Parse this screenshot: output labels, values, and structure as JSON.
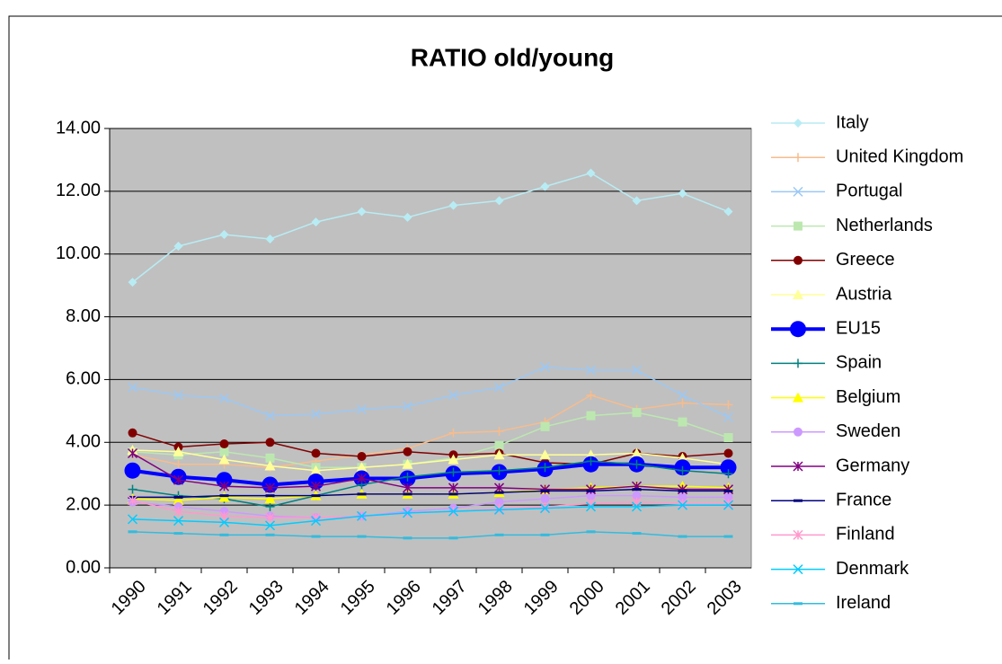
{
  "chart_data": {
    "type": "line",
    "title": "RATIO old/young",
    "categories": [
      "1990",
      "1991",
      "1992",
      "1993",
      "1994",
      "1995",
      "1996",
      "1997",
      "1998",
      "1999",
      "2000",
      "2001",
      "2002",
      "2003"
    ],
    "ylim": [
      0,
      14
    ],
    "yticks": [
      {
        "value": 0,
        "label": "0.00"
      },
      {
        "value": 2,
        "label": "2.00"
      },
      {
        "value": 4,
        "label": "4.00"
      },
      {
        "value": 6,
        "label": "6.00"
      },
      {
        "value": 8,
        "label": "8.00"
      },
      {
        "value": 10,
        "label": "10.00"
      },
      {
        "value": 12,
        "label": "12.00"
      },
      {
        "value": 14,
        "label": "14.00"
      }
    ],
    "grid": true,
    "legend": "right",
    "series": [
      {
        "name": "Italy",
        "color": "#b8ecf4",
        "marker": "diamond",
        "values": [
          9.1,
          10.25,
          10.62,
          10.48,
          11.02,
          11.35,
          11.17,
          11.55,
          11.7,
          12.15,
          12.58,
          11.7,
          11.93,
          11.35
        ]
      },
      {
        "name": "United Kingdom",
        "color": "#f8bc8c",
        "marker": "plus",
        "values": [
          3.6,
          3.3,
          3.3,
          3.2,
          3.4,
          3.6,
          3.8,
          4.3,
          4.35,
          4.65,
          5.5,
          5.05,
          5.25,
          5.2
        ]
      },
      {
        "name": "Portugal",
        "color": "#9cc8f4",
        "marker": "x",
        "values": [
          5.75,
          5.5,
          5.4,
          4.85,
          4.9,
          5.05,
          5.15,
          5.5,
          5.75,
          6.4,
          6.3,
          6.3,
          5.5,
          4.8
        ]
      },
      {
        "name": "Netherlands",
        "color": "#bce8b0",
        "marker": "square",
        "values": [
          3.7,
          3.6,
          3.7,
          3.5,
          3.2,
          3.2,
          3.3,
          3.5,
          3.9,
          4.5,
          4.85,
          4.95,
          4.65,
          4.15
        ]
      },
      {
        "name": "Greece",
        "color": "#800000",
        "marker": "circle",
        "values": [
          4.3,
          3.85,
          3.95,
          4.0,
          3.65,
          3.55,
          3.7,
          3.6,
          3.65,
          3.35,
          3.3,
          3.65,
          3.55,
          3.65
        ]
      },
      {
        "name": "Austria",
        "color": "#ffff99",
        "marker": "triangle",
        "values": [
          3.75,
          3.7,
          3.45,
          3.25,
          3.1,
          3.2,
          3.3,
          3.45,
          3.6,
          3.6,
          3.6,
          3.65,
          3.5,
          3.3
        ]
      },
      {
        "name": "EU15",
        "color": "#0000ff",
        "marker": "bigcircle",
        "values": [
          3.1,
          2.9,
          2.8,
          2.65,
          2.75,
          2.85,
          2.85,
          3.0,
          3.05,
          3.15,
          3.3,
          3.3,
          3.2,
          3.2
        ]
      },
      {
        "name": "Spain",
        "color": "#008080",
        "marker": "plus",
        "values": [
          2.5,
          2.3,
          2.2,
          1.95,
          2.3,
          2.65,
          2.9,
          3.05,
          3.1,
          3.2,
          3.4,
          3.3,
          3.1,
          3.0
        ]
      },
      {
        "name": "Belgium",
        "color": "#ffff00",
        "marker": "triangle",
        "values": [
          2.2,
          2.15,
          2.25,
          2.2,
          2.3,
          2.35,
          2.35,
          2.35,
          2.4,
          2.5,
          2.55,
          2.6,
          2.6,
          2.55
        ]
      },
      {
        "name": "Sweden",
        "color": "#cc99ff",
        "marker": "circle",
        "values": [
          2.1,
          1.95,
          1.8,
          1.65,
          1.6,
          1.65,
          1.8,
          1.9,
          2.1,
          2.2,
          2.3,
          2.3,
          2.25,
          2.25
        ]
      },
      {
        "name": "Germany",
        "color": "#800080",
        "marker": "star",
        "values": [
          3.65,
          2.8,
          2.6,
          2.55,
          2.6,
          2.85,
          2.55,
          2.55,
          2.55,
          2.5,
          2.5,
          2.6,
          2.5,
          2.5
        ]
      },
      {
        "name": "France",
        "color": "#000080",
        "marker": "dash",
        "values": [
          2.25,
          2.25,
          2.3,
          2.3,
          2.3,
          2.35,
          2.35,
          2.35,
          2.4,
          2.45,
          2.45,
          2.5,
          2.45,
          2.45
        ]
      },
      {
        "name": "Finland",
        "color": "#ff99cc",
        "marker": "star",
        "values": [
          2.15,
          1.8,
          1.65,
          1.6,
          1.6,
          1.65,
          1.75,
          1.8,
          1.9,
          1.95,
          2.05,
          2.1,
          2.05,
          2.05
        ]
      },
      {
        "name": "Denmark",
        "color": "#00ccff",
        "marker": "x",
        "values": [
          1.55,
          1.5,
          1.45,
          1.35,
          1.5,
          1.65,
          1.75,
          1.8,
          1.85,
          1.9,
          1.95,
          1.95,
          2.0,
          2.0
        ]
      },
      {
        "name": "Ireland",
        "color": "#33bbdd",
        "marker": "dash",
        "values": [
          1.15,
          1.1,
          1.05,
          1.05,
          1.0,
          1.0,
          0.95,
          0.95,
          1.05,
          1.05,
          1.15,
          1.1,
          1.0,
          1.0
        ]
      }
    ]
  }
}
